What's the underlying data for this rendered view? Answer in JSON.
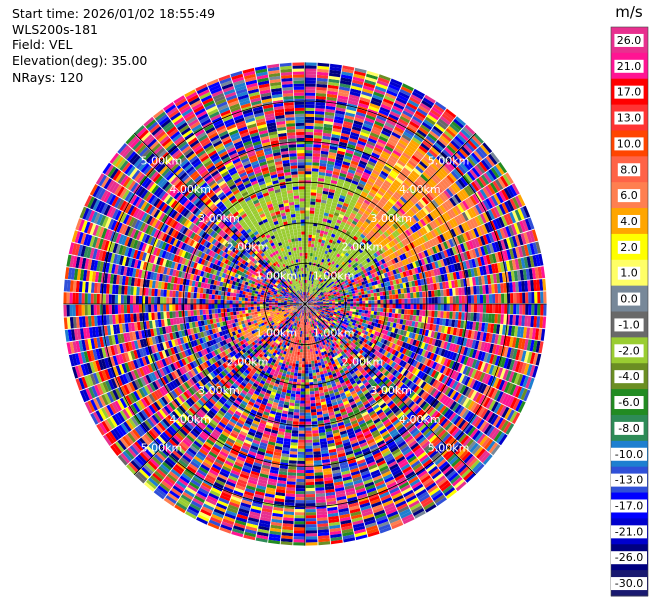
{
  "info": {
    "start_time": "Start time: 2026/01/02 18:55:49",
    "instrument": "WLS200s-181",
    "field": "Field: VEL",
    "elevation": "Elevation(deg): 35.00",
    "nrays": "NRays: 120"
  },
  "chart_data": {
    "type": "heatmap",
    "projection": "polar",
    "title": "",
    "field": "VEL",
    "elevation_deg": 35.0,
    "n_rays": 120,
    "range_rings_km": [
      1,
      2,
      3,
      4,
      5
    ],
    "range_labels": [
      "1.00km",
      "2.00km",
      "3.00km",
      "4.00km",
      "5.00km"
    ],
    "max_range_km": 5.95,
    "grid": true,
    "colorbar": {
      "unit": "m/s",
      "placement": "right",
      "tick_labels": [
        "26.0",
        "21.0",
        "17.0",
        "13.0",
        "10.0",
        "8.0",
        "6.0",
        "4.0",
        "2.0",
        "1.0",
        "0.0",
        "-1.0",
        "-2.0",
        "-4.0",
        "-6.0",
        "-8.0",
        "-10.0",
        "-13.0",
        "-17.0",
        "-21.0",
        "-26.0",
        "-30.0"
      ],
      "bins": [
        {
          "color": "#e8308f"
        },
        {
          "color": "#ff1493"
        },
        {
          "color": "#ff0000"
        },
        {
          "color": "#ff3333"
        },
        {
          "color": "#ff4500"
        },
        {
          "color": "#ff6347"
        },
        {
          "color": "#ff7f50"
        },
        {
          "color": "#ffa500"
        },
        {
          "color": "#ffff00"
        },
        {
          "color": "#ffff66"
        },
        {
          "color": "#778899"
        },
        {
          "color": "#696969"
        },
        {
          "color": "#9acd32"
        },
        {
          "color": "#6b8e23"
        },
        {
          "color": "#228b22"
        },
        {
          "color": "#2e8b57"
        },
        {
          "color": "#1e7fd0"
        },
        {
          "color": "#3050d8"
        },
        {
          "color": "#0000ff"
        },
        {
          "color": "#0000cd"
        },
        {
          "color": "#000080"
        },
        {
          "color": "#191970"
        }
      ]
    },
    "features": [
      {
        "description": "coherent positive (yellow) region",
        "azimuth_deg": [
          28,
          70
        ],
        "range_km": [
          2.2,
          4.8
        ],
        "value_ms": 4.0
      },
      {
        "description": "slate-grey region",
        "azimuth_deg": [
          30,
          42
        ],
        "range_km": [
          3.0,
          4.3
        ],
        "value_ms": 1.0
      },
      {
        "description": "coherent negative (green) near field",
        "azimuth_deg": [
          -40,
          60
        ],
        "range_km": [
          0.3,
          3.2
        ],
        "value_ms": -3.0
      },
      {
        "description": "salmon region",
        "azimuth_deg": [
          165,
          200
        ],
        "range_km": [
          0.3,
          1.5
        ],
        "value_ms": 7.0
      },
      {
        "description": "yellow wedge west-southwest",
        "azimuth_deg": [
          235,
          260
        ],
        "range_km": [
          0.3,
          1.7
        ],
        "value_ms": 4.0
      }
    ]
  }
}
